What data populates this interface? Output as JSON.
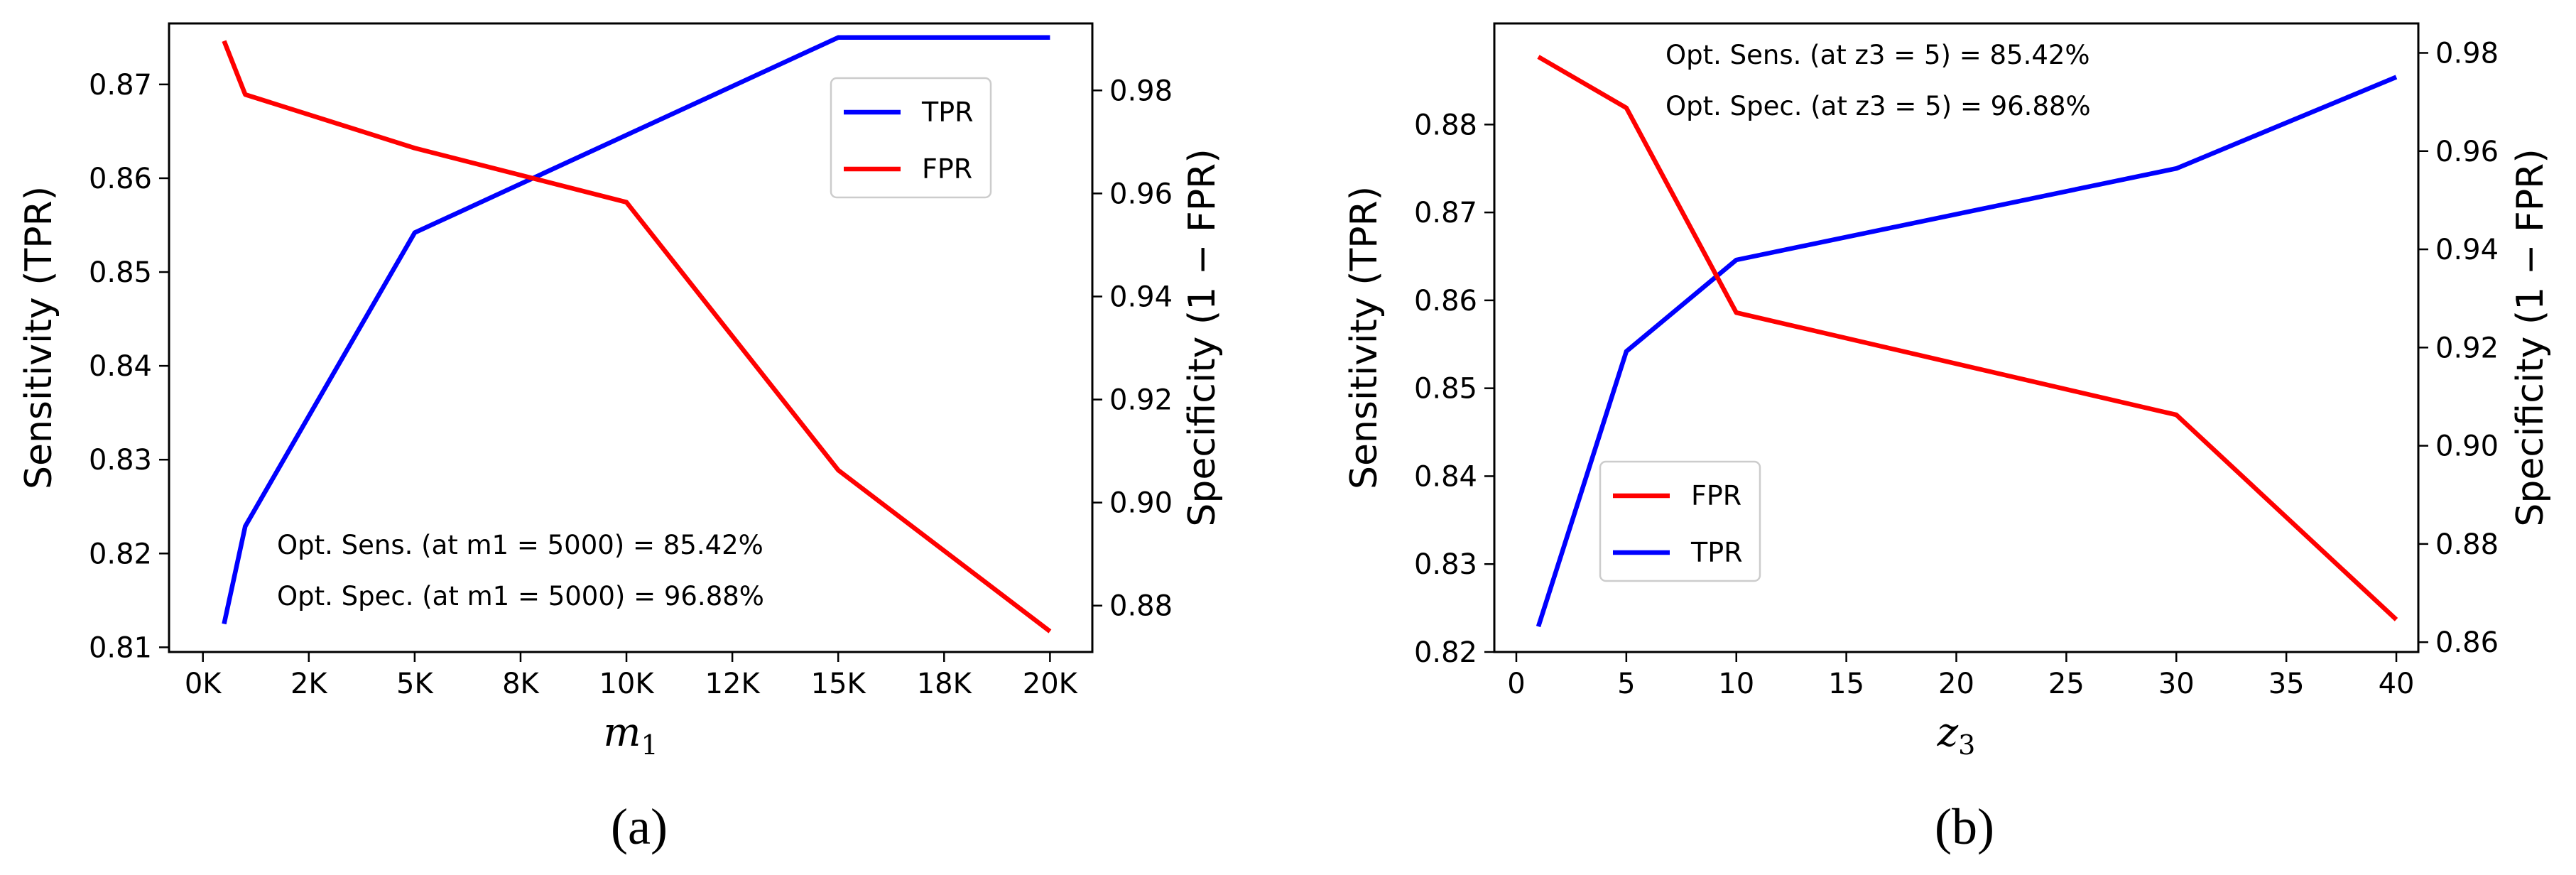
{
  "chart_data": [
    {
      "type": "line",
      "panel_label": "(a)",
      "xlabel": {
        "symbol": "m",
        "subscript": "1"
      },
      "ylabel_left": "Sensitivity (TPR)",
      "ylabel_right": "Specificity (1 − FPR)",
      "xlim": [
        -800,
        21000
      ],
      "x_ticks": [
        0,
        2500,
        5000,
        7500,
        10000,
        12500,
        15000,
        17500,
        20000
      ],
      "x_tick_labels": [
        "0K",
        "2K",
        "5K",
        "8K",
        "10K",
        "12K",
        "15K",
        "18K",
        "20K"
      ],
      "ylim_left": [
        0.8095,
        0.8765
      ],
      "y_ticks_left": [
        0.81,
        0.82,
        0.83,
        0.84,
        0.85,
        0.86,
        0.87
      ],
      "y_tick_labels_left": [
        "0.81",
        "0.82",
        "0.83",
        "0.84",
        "0.85",
        "0.86",
        "0.87"
      ],
      "ylim_right": [
        0.871,
        0.993
      ],
      "y_ticks_right": [
        0.88,
        0.9,
        0.92,
        0.94,
        0.96,
        0.98
      ],
      "y_tick_labels_right": [
        "0.88",
        "0.90",
        "0.92",
        "0.94",
        "0.96",
        "0.98"
      ],
      "series": [
        {
          "name": "TPR",
          "axis": "left",
          "color": "#0000ff",
          "x": [
            500,
            1000,
            5000,
            10000,
            15000,
            20000
          ],
          "y": [
            0.8125,
            0.8229,
            0.8542,
            0.8646,
            0.875,
            0.875
          ]
        },
        {
          "name": "FPR",
          "axis": "right",
          "color": "#ff0000",
          "x": [
            500,
            1000,
            5000,
            10000,
            15000,
            20000
          ],
          "y": [
            0.9896,
            0.9792,
            0.9688,
            0.9583,
            0.9063,
            0.875
          ]
        }
      ],
      "legend": {
        "placement": "upper-right-inner",
        "entries": [
          {
            "label": "TPR",
            "color": "#0000ff"
          },
          {
            "label": "FPR",
            "color": "#ff0000"
          }
        ]
      },
      "annotations": [
        "Opt. Sens. (at m1 = 5000) = 85.42%",
        "Opt. Spec. (at m1 = 5000) = 96.88%"
      ]
    },
    {
      "type": "line",
      "panel_label": "(b)",
      "xlabel": {
        "symbol": "z",
        "subscript": "3"
      },
      "ylabel_left": "Sensitivity (TPR)",
      "ylabel_right": "Specificity (1 − FPR)",
      "xlim": [
        -1.0,
        41.0
      ],
      "x_ticks": [
        0,
        5,
        10,
        15,
        20,
        25,
        30,
        35,
        40
      ],
      "x_tick_labels": [
        "0",
        "5",
        "10",
        "15",
        "20",
        "25",
        "30",
        "35",
        "40"
      ],
      "ylim_left": [
        0.82,
        0.8915
      ],
      "y_ticks_left": [
        0.82,
        0.83,
        0.84,
        0.85,
        0.86,
        0.87,
        0.88
      ],
      "y_tick_labels_left": [
        "0.82",
        "0.83",
        "0.84",
        "0.85",
        "0.86",
        "0.87",
        "0.88"
      ],
      "ylim_right": [
        0.858,
        0.986
      ],
      "y_ticks_right": [
        0.86,
        0.88,
        0.9,
        0.92,
        0.94,
        0.96,
        0.98
      ],
      "y_tick_labels_right": [
        "0.86",
        "0.88",
        "0.90",
        "0.92",
        "0.94",
        "0.96",
        "0.98"
      ],
      "series": [
        {
          "name": "TPR",
          "axis": "left",
          "color": "#0000ff",
          "x": [
            1,
            5,
            10,
            30,
            40
          ],
          "y": [
            0.8229,
            0.8542,
            0.8646,
            0.875,
            0.8854
          ]
        },
        {
          "name": "FPR",
          "axis": "right",
          "color": "#ff0000",
          "x": [
            1,
            5,
            10,
            30,
            40
          ],
          "y": [
            0.9792,
            0.9688,
            0.9271,
            0.9063,
            0.8646
          ]
        }
      ],
      "legend": {
        "placement": "lower-left-inner",
        "entries": [
          {
            "label": "FPR",
            "color": "#ff0000"
          },
          {
            "label": "TPR",
            "color": "#0000ff"
          }
        ]
      },
      "annotations": [
        "Opt. Sens. (at z3 = 5) = 85.42%",
        "Opt. Spec. (at z3 = 5) = 96.88%"
      ]
    }
  ]
}
